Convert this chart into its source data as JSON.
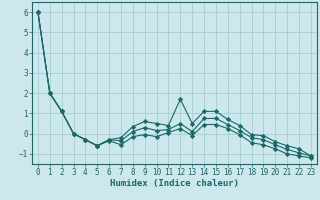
{
  "xlabel": "Humidex (Indice chaleur)",
  "bg_color": "#cce8ec",
  "grid_color": "#a0c8cc",
  "line_color": "#1a6868",
  "xlim": [
    -0.5,
    23.5
  ],
  "ylim": [
    -1.5,
    6.5
  ],
  "yticks": [
    -1,
    0,
    1,
    2,
    3,
    4,
    5,
    6
  ],
  "xticks": [
    0,
    1,
    2,
    3,
    4,
    5,
    6,
    7,
    8,
    9,
    10,
    11,
    12,
    13,
    14,
    15,
    16,
    17,
    18,
    19,
    20,
    21,
    22,
    23
  ],
  "series": [
    [
      6.0,
      2.0,
      1.1,
      0.0,
      -0.3,
      -0.6,
      -0.3,
      -0.2,
      0.35,
      0.6,
      0.5,
      0.4,
      1.7,
      0.5,
      1.1,
      1.1,
      0.7,
      0.4,
      -0.05,
      -0.1,
      -0.4,
      -0.6,
      -0.75,
      -1.1
    ],
    [
      6.0,
      2.0,
      1.1,
      0.0,
      -0.3,
      -0.6,
      -0.3,
      -0.35,
      0.1,
      0.3,
      0.15,
      0.2,
      0.5,
      0.1,
      0.75,
      0.75,
      0.45,
      0.15,
      -0.2,
      -0.3,
      -0.55,
      -0.78,
      -0.95,
      -1.1
    ],
    [
      6.0,
      2.0,
      1.1,
      0.0,
      -0.3,
      -0.6,
      -0.35,
      -0.55,
      -0.15,
      -0.05,
      -0.15,
      0.05,
      0.25,
      -0.1,
      0.45,
      0.45,
      0.25,
      -0.05,
      -0.45,
      -0.55,
      -0.75,
      -1.0,
      -1.1,
      -1.2
    ]
  ],
  "marker": "D",
  "marker_size": 2.2,
  "line_width": 0.8
}
